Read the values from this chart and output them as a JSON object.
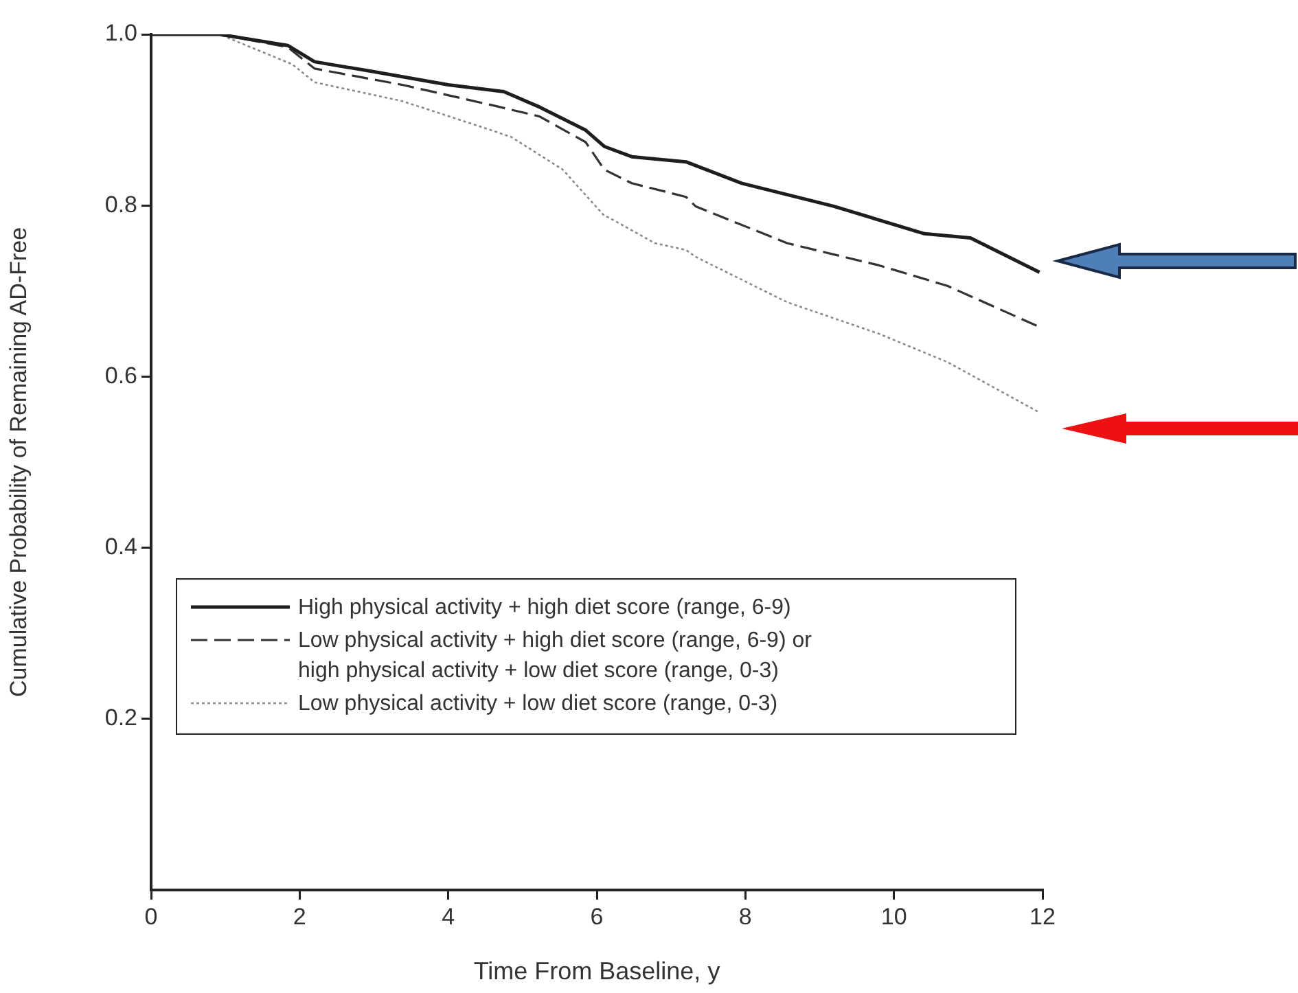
{
  "chart_data": {
    "type": "line",
    "xlabel": "Time From Baseline, y",
    "ylabel": "Cumulative Probability of Remaining AD-Free",
    "x": [
      0,
      0.92,
      1.84,
      2.2,
      2.95,
      4.0,
      4.75,
      5.23,
      5.85,
      6.1,
      6.47,
      6.71,
      7.2,
      7.95,
      9.19,
      10.41,
      11.03,
      11.96
    ],
    "series": [
      {
        "name": "High physical activity + high diet score (range, 6-9)",
        "color": "#1e1e1e",
        "line_style": "solid",
        "values": [
          1.0,
          1.0,
          0.987,
          0.968,
          0.957,
          0.941,
          0.933,
          0.915,
          0.888,
          0.869,
          0.857,
          0.855,
          0.851,
          0.826,
          0.799,
          0.767,
          0.762,
          0.722
        ]
      },
      {
        "name": "Low physical activity + high diet score (range, 6-9) or high physical activity + low diet score (range, 0-3)",
        "color": "#333333",
        "line_style": "dashed",
        "x": [
          0,
          0.92,
          1.84,
          2.2,
          3.38,
          4.6,
          5.23,
          5.85,
          6.1,
          6.47,
          7.2,
          7.33,
          8.56,
          9.8,
          10.72,
          11.96
        ],
        "values": [
          1.0,
          1.0,
          0.985,
          0.96,
          0.941,
          0.917,
          0.904,
          0.874,
          0.842,
          0.826,
          0.81,
          0.799,
          0.756,
          0.73,
          0.706,
          0.658
        ]
      },
      {
        "name": "Low physical activity + low diet score (range, 0-3)",
        "color": "#8a8a8a",
        "line_style": "dotted",
        "x": [
          0,
          0.92,
          1.9,
          2.2,
          3.38,
          4.3,
          4.85,
          5.54,
          6.1,
          6.16,
          6.78,
          7.2,
          7.33,
          8.56,
          9.8,
          10.72,
          11.96
        ],
        "values": [
          1.0,
          1.0,
          0.965,
          0.944,
          0.922,
          0.896,
          0.88,
          0.842,
          0.788,
          0.786,
          0.756,
          0.748,
          0.74,
          0.687,
          0.65,
          0.617,
          0.558
        ]
      }
    ],
    "xlim": [
      0,
      12
    ],
    "xticks": [
      0,
      2,
      4,
      6,
      8,
      10,
      12
    ],
    "ylim": [
      0,
      1.0
    ],
    "yticks": [
      {
        "value": 0.2,
        "label": "0.2"
      },
      {
        "value": 0.4,
        "label": "0.4"
      },
      {
        "value": 0.6,
        "label": "0.6"
      },
      {
        "value": 0.8,
        "label": "0.8"
      },
      {
        "value": 1.0,
        "label": "1.0"
      }
    ],
    "grid": false,
    "legend": "bottom left",
    "marker": "none"
  }
}
